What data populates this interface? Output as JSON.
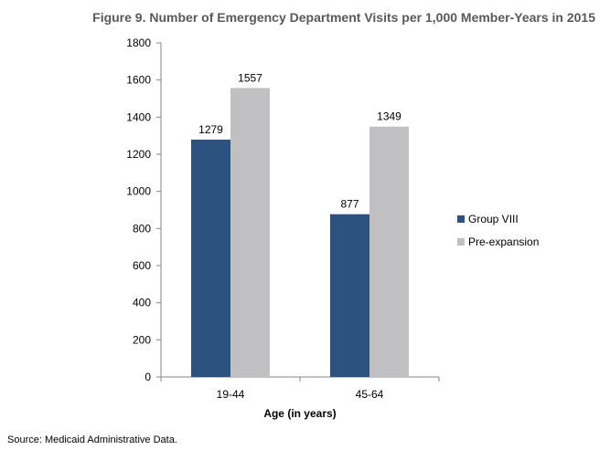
{
  "chart_data": {
    "type": "bar",
    "title": "Figure 9. Number of Emergency Department Visits per 1,000 Member-Years in 2015",
    "xlabel": "Age (in years)",
    "ylabel": "",
    "categories": [
      "19-44",
      "45-64"
    ],
    "series": [
      {
        "name": "Group VIII",
        "values": [
          1279,
          877
        ],
        "color": "#2E527F"
      },
      {
        "name": "Pre-expansion",
        "values": [
          1557,
          1349
        ],
        "color": "#C0C0C2"
      }
    ],
    "ylim": [
      0,
      1800
    ],
    "yticks": [
      0,
      200,
      400,
      600,
      800,
      1000,
      1200,
      1400,
      1600,
      1800
    ],
    "grid": false,
    "legend_position": "right"
  },
  "source_note": "Source: Medicaid Administrative Data."
}
